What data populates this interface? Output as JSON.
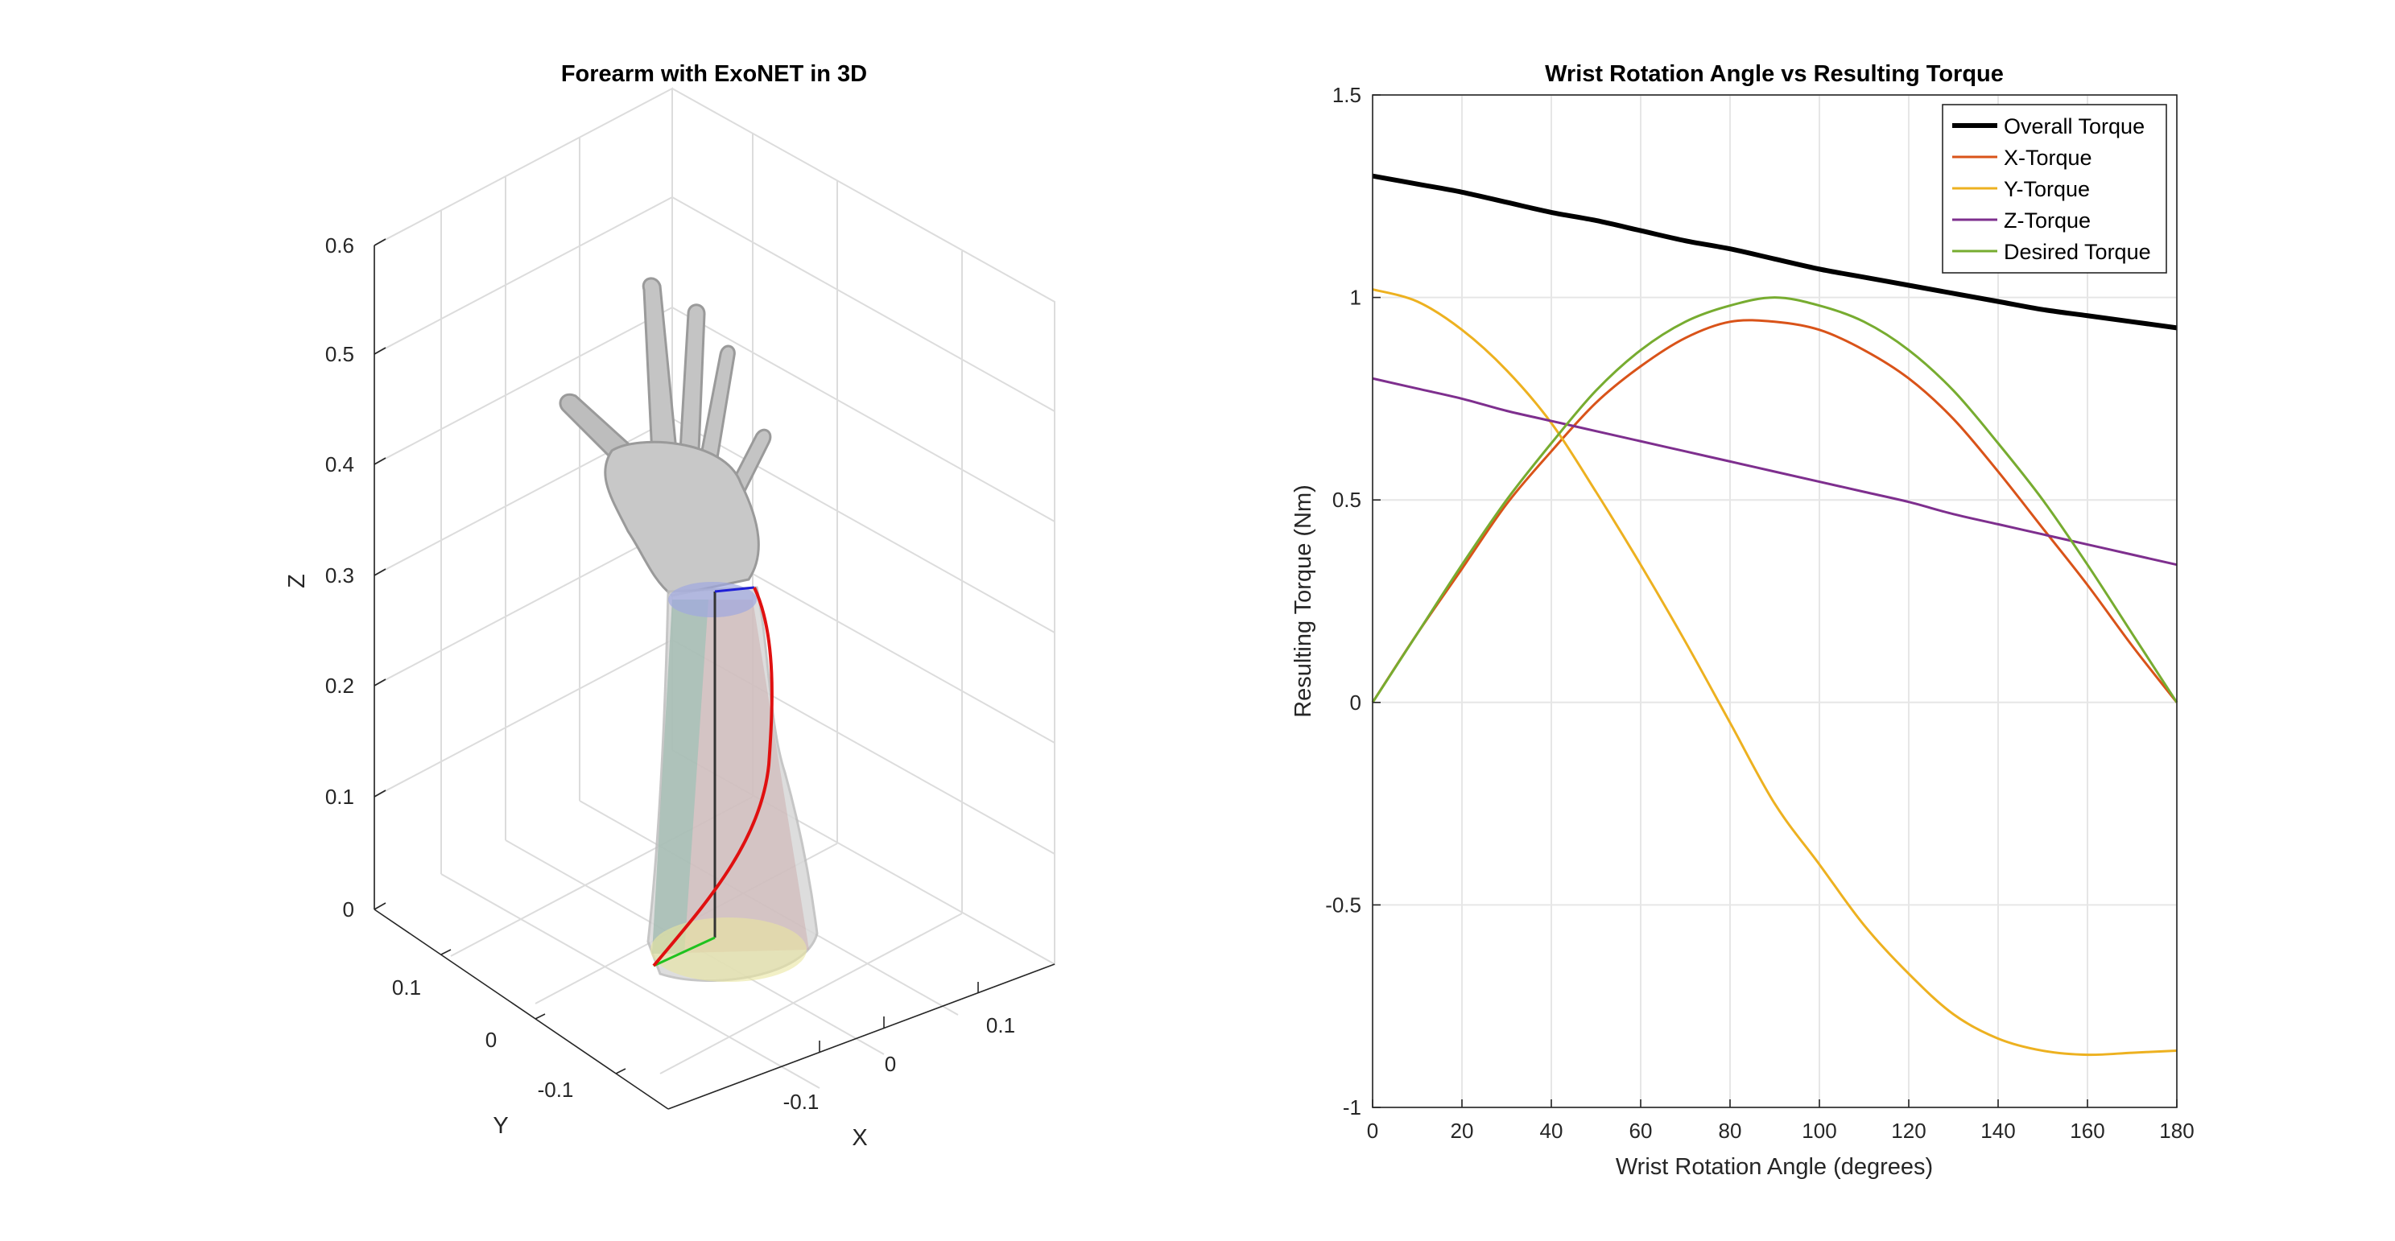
{
  "left_panel": {
    "title": "Forearm with ExoNET in 3D",
    "z_label": "Z",
    "x_label": "X",
    "y_label": "Y",
    "z_ticks": [
      "0",
      "0.1",
      "0.2",
      "0.3",
      "0.4",
      "0.5",
      "0.6"
    ],
    "x_ticks": [
      "-0.1",
      "0",
      "0.1"
    ],
    "y_ticks": [
      "0.1",
      "0",
      "-0.1"
    ]
  },
  "chart_data": {
    "type": "line",
    "title": "Wrist Rotation Angle vs Resulting Torque",
    "xlabel": "Wrist Rotation Angle (degrees)",
    "ylabel": "Resulting Torque (Nm)",
    "xlim": [
      0,
      180
    ],
    "ylim": [
      -1,
      1.5
    ],
    "xticks": [
      0,
      20,
      40,
      60,
      80,
      100,
      120,
      140,
      160,
      180
    ],
    "yticks": [
      -1,
      -0.5,
      0,
      0.5,
      1,
      1.5
    ],
    "ytick_labels": [
      "-1",
      "-0.5",
      "0",
      "0.5",
      "1",
      "1.5"
    ],
    "grid": true,
    "legend_position": "top-right",
    "x": [
      0,
      10,
      20,
      30,
      40,
      50,
      60,
      70,
      80,
      90,
      100,
      110,
      120,
      130,
      140,
      150,
      160,
      170,
      180
    ],
    "series": [
      {
        "name": "Overall Torque",
        "color": "#000000",
        "width": 6,
        "values": [
          1.3,
          1.28,
          1.26,
          1.235,
          1.21,
          1.19,
          1.165,
          1.14,
          1.12,
          1.095,
          1.07,
          1.05,
          1.03,
          1.01,
          0.99,
          0.97,
          0.955,
          0.94,
          0.925
        ]
      },
      {
        "name": "X-Torque",
        "color": "#D95319",
        "width": 3,
        "values": [
          0.0,
          0.17,
          0.33,
          0.49,
          0.62,
          0.74,
          0.83,
          0.9,
          0.94,
          0.94,
          0.92,
          0.87,
          0.8,
          0.7,
          0.57,
          0.43,
          0.29,
          0.14,
          0.0
        ]
      },
      {
        "name": "Y-Torque",
        "color": "#EDB120",
        "width": 3,
        "values": [
          1.02,
          0.99,
          0.92,
          0.82,
          0.69,
          0.52,
          0.34,
          0.15,
          -0.05,
          -0.25,
          -0.4,
          -0.55,
          -0.67,
          -0.77,
          -0.83,
          -0.86,
          -0.87,
          -0.865,
          -0.86
        ]
      },
      {
        "name": "Z-Torque",
        "color": "#7E2F8E",
        "width": 3,
        "values": [
          0.8,
          0.775,
          0.75,
          0.72,
          0.695,
          0.67,
          0.645,
          0.62,
          0.595,
          0.57,
          0.545,
          0.52,
          0.495,
          0.465,
          0.44,
          0.415,
          0.39,
          0.365,
          0.34
        ]
      },
      {
        "name": "Desired Torque",
        "color": "#77AC30",
        "width": 3,
        "values": [
          0.0,
          0.17,
          0.34,
          0.5,
          0.64,
          0.77,
          0.87,
          0.94,
          0.98,
          1.0,
          0.98,
          0.94,
          0.87,
          0.77,
          0.64,
          0.5,
          0.34,
          0.17,
          0.0
        ]
      }
    ]
  }
}
